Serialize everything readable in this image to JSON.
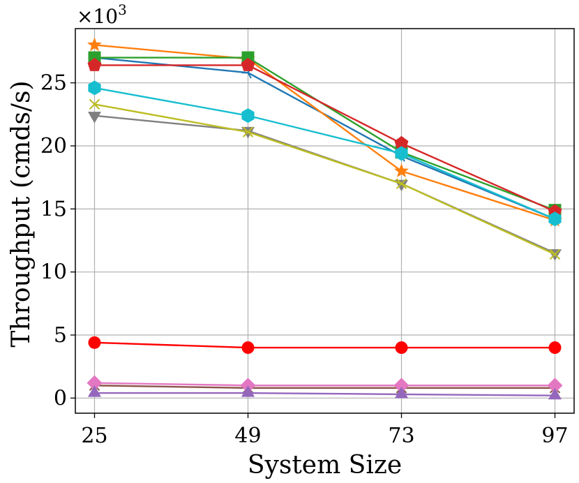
{
  "chart_data": {
    "type": "line",
    "title": "",
    "xlabel": "System Size",
    "ylabel": "Throughput (cmds/s)",
    "y_multiplier_label": "×10",
    "y_multiplier_exponent": "3",
    "x": [
      25,
      49,
      73,
      97
    ],
    "x_tick_labels": [
      "25",
      "49",
      "73",
      "97"
    ],
    "y_ticks": [
      0,
      5,
      10,
      15,
      20,
      25
    ],
    "y_tick_labels": [
      "0",
      "5",
      "10",
      "15",
      "20",
      "25"
    ],
    "ylim": [
      -1.2,
      29.3
    ],
    "grid": true,
    "legend": "none",
    "series": [
      {
        "name": "blue tri-left",
        "color": "#1f77b4",
        "marker": "tri",
        "values": [
          27.0,
          25.8,
          19.2,
          14.2
        ]
      },
      {
        "name": "orange star",
        "color": "#ff7f0e",
        "marker": "star",
        "values": [
          28.0,
          26.9,
          18.0,
          14.1
        ]
      },
      {
        "name": "green square",
        "color": "#2ca02c",
        "marker": "square",
        "values": [
          27.0,
          27.0,
          19.5,
          14.9
        ]
      },
      {
        "name": "red pentagon",
        "color": "#d62728",
        "marker": "pentagon",
        "values": [
          26.4,
          26.4,
          20.2,
          14.8
        ]
      },
      {
        "name": "cyan hexagon",
        "color": "#17becf",
        "marker": "hexagon",
        "values": [
          24.6,
          22.4,
          19.4,
          14.2
        ]
      },
      {
        "name": "gray triangle-down",
        "color": "#7f7f7f",
        "marker": "triangle-down",
        "values": [
          22.4,
          21.2,
          17.0,
          11.5
        ]
      },
      {
        "name": "olive x",
        "color": "#bcbd22",
        "marker": "x",
        "values": [
          23.3,
          21.1,
          17.0,
          11.4
        ]
      },
      {
        "name": "red circle",
        "color": "#ff0000",
        "marker": "circle",
        "values": [
          4.4,
          4.0,
          4.0,
          4.0
        ]
      },
      {
        "name": "brown x",
        "color": "#8c564b",
        "marker": "x",
        "values": [
          1.0,
          0.8,
          0.8,
          0.8
        ]
      },
      {
        "name": "pink diamond",
        "color": "#e377c2",
        "marker": "diamond",
        "values": [
          1.2,
          1.0,
          1.0,
          1.0
        ]
      },
      {
        "name": "purple triangle-up",
        "color": "#9467bd",
        "marker": "triangle-up",
        "values": [
          0.4,
          0.4,
          0.3,
          0.2
        ]
      }
    ]
  }
}
